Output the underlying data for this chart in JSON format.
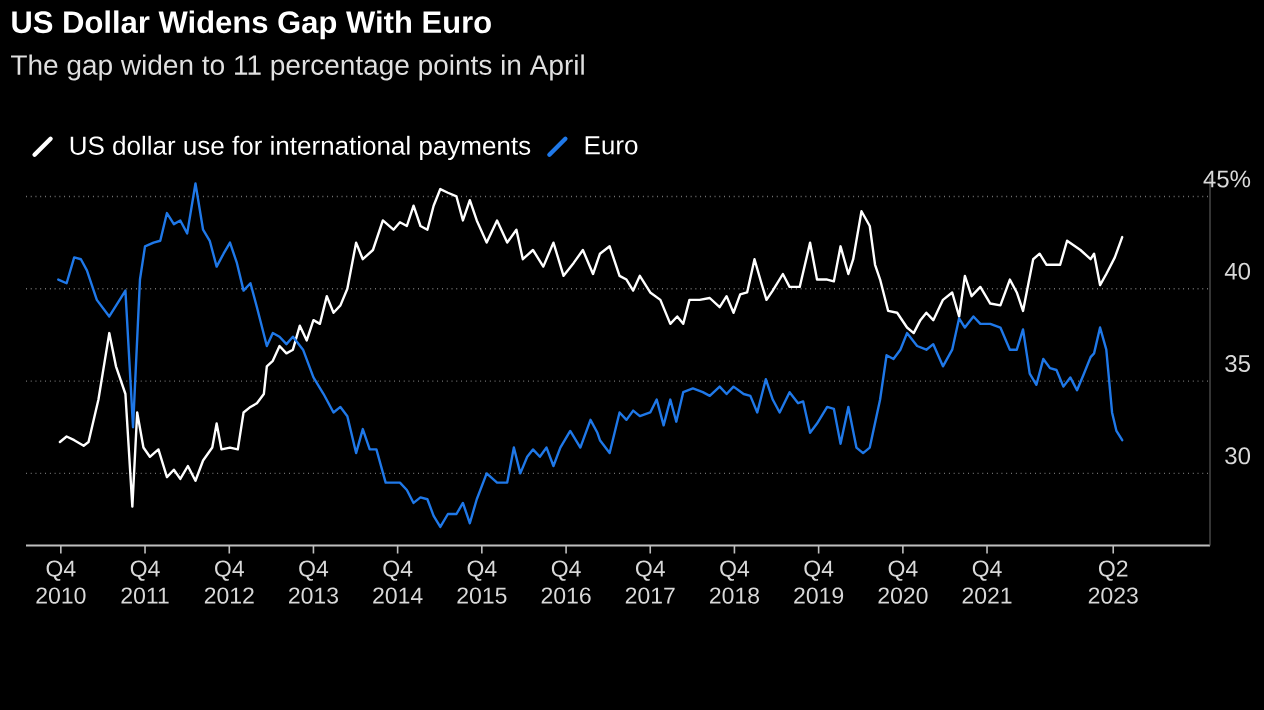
{
  "chart_data": {
    "type": "line",
    "title": "US Dollar Widens Gap With Euro",
    "subtitle": "The gap widen to 11 percentage points in April",
    "xlim": [
      "2010-05-03",
      "2024-05-25"
    ],
    "xticks": [
      {
        "value": "2010-10-01",
        "label": "Q4 2010"
      },
      {
        "value": "2011-10-01",
        "label": "Q4 2011"
      },
      {
        "value": "2012-10-01",
        "label": "Q4 2012"
      },
      {
        "value": "2013-10-01",
        "label": "Q4 2013"
      },
      {
        "value": "2014-10-01",
        "label": "Q4 2014"
      },
      {
        "value": "2015-10-01",
        "label": "Q4 2015"
      },
      {
        "value": "2016-10-01",
        "label": "Q4 2016"
      },
      {
        "value": "2017-10-01",
        "label": "Q4 2017"
      },
      {
        "value": "2018-10-01",
        "label": "Q4 2018"
      },
      {
        "value": "2019-10-01",
        "label": "Q4 2019"
      },
      {
        "value": "2020-10-01",
        "label": "Q4 2020"
      },
      {
        "value": "2021-10-01",
        "label": "Q4 2021"
      },
      {
        "value": "2023-04-01",
        "label": "Q2 2023"
      }
    ],
    "ylim": [
      26.1,
      46
    ],
    "yticks": [
      30,
      35,
      40,
      {
        "value": 45,
        "label": "45%"
      }
    ],
    "grid": "y",
    "legend": "top",
    "marker": "none",
    "line_style": "solid",
    "series": [
      {
        "name": "US dollar use for international payments",
        "color": "#ffffff",
        "x": [
          "2010-09-27",
          "2010-10-26",
          "2010-11-28",
          "2011-01-08",
          "2011-01-29",
          "2011-03-13",
          "2011-04-29",
          "2011-05-28",
          "2011-07-08",
          "2011-08-07",
          "2011-08-28",
          "2011-09-24",
          "2011-10-22",
          "2011-11-28",
          "2012-01-04",
          "2012-02-03",
          "2012-03-02",
          "2012-04-04",
          "2012-05-07",
          "2012-06-09",
          "2012-07-19",
          "2012-08-07",
          "2012-08-28",
          "2012-10-04",
          "2012-11-07",
          "2012-12-02",
          "2013-01-01",
          "2013-01-29",
          "2013-02-28",
          "2013-03-13",
          "2013-04-08",
          "2013-05-07",
          "2013-06-06",
          "2013-07-04",
          "2013-08-03",
          "2013-09-02",
          "2013-10-01",
          "2013-10-29",
          "2013-11-28",
          "2013-12-27",
          "2014-01-26",
          "2014-02-25",
          "2014-04-04",
          "2014-05-03",
          "2014-06-16",
          "2014-07-29",
          "2014-09-13",
          "2014-10-11",
          "2014-11-10",
          "2014-12-09",
          "2015-01-08",
          "2015-02-07",
          "2015-03-06",
          "2015-04-04",
          "2015-05-07",
          "2015-06-13",
          "2015-07-11",
          "2015-08-10",
          "2015-09-09",
          "2015-10-22",
          "2015-12-06",
          "2016-01-19",
          "2016-02-28",
          "2016-03-27",
          "2016-05-10",
          "2016-06-24",
          "2016-08-07",
          "2016-09-20",
          "2016-11-03",
          "2016-12-13",
          "2017-01-26",
          "2017-02-25",
          "2017-04-08",
          "2017-05-21",
          "2017-06-20",
          "2017-07-19",
          "2017-08-17",
          "2017-10-01",
          "2017-11-14",
          "2017-12-27",
          "2018-01-26",
          "2018-02-21",
          "2018-03-20",
          "2018-05-03",
          "2018-06-16",
          "2018-07-29",
          "2018-08-28",
          "2018-09-27",
          "2018-10-26",
          "2018-11-25",
          "2018-12-27",
          "2019-01-26",
          "2019-02-17",
          "2019-03-16",
          "2019-04-29",
          "2019-05-28",
          "2019-07-11",
          "2019-08-25",
          "2019-09-24",
          "2019-11-07",
          "2019-12-06",
          "2020-01-04",
          "2020-02-07",
          "2020-02-28",
          "2020-04-04",
          "2020-05-10",
          "2020-06-02",
          "2020-06-24",
          "2020-07-29",
          "2020-09-06",
          "2020-10-19",
          "2020-11-17",
          "2020-12-16",
          "2021-01-11",
          "2021-02-10",
          "2021-03-24",
          "2021-05-03",
          "2021-06-02",
          "2021-06-27",
          "2021-07-26",
          "2021-09-02",
          "2021-10-15",
          "2021-11-28",
          "2022-01-08",
          "2022-02-07",
          "2022-03-06",
          "2022-04-19",
          "2022-05-17",
          "2022-06-16",
          "2022-08-14",
          "2022-09-13",
          "2022-11-10",
          "2022-12-24",
          "2023-01-08",
          "2023-02-03",
          "2023-03-02",
          "2023-04-08",
          "2023-05-10"
        ],
        "values": [
          31.7,
          32.0,
          31.8,
          31.5,
          31.7,
          34.0,
          37.6,
          35.8,
          34.3,
          28.2,
          33.3,
          31.4,
          30.9,
          31.3,
          29.8,
          30.2,
          29.7,
          30.4,
          29.6,
          30.7,
          31.4,
          32.7,
          31.3,
          31.4,
          31.3,
          33.3,
          33.6,
          33.8,
          34.3,
          35.8,
          36.1,
          36.9,
          36.5,
          36.7,
          38.0,
          37.2,
          38.3,
          38.1,
          39.6,
          38.7,
          39.1,
          40.0,
          42.5,
          41.6,
          42.1,
          43.7,
          43.2,
          43.6,
          43.4,
          44.5,
          43.4,
          43.2,
          44.5,
          45.4,
          45.2,
          45.0,
          43.7,
          44.8,
          43.7,
          42.5,
          43.7,
          42.5,
          43.2,
          41.6,
          42.1,
          41.2,
          42.5,
          40.7,
          41.4,
          42.1,
          40.8,
          41.9,
          42.3,
          40.7,
          40.5,
          39.9,
          40.7,
          39.8,
          39.4,
          38.1,
          38.5,
          38.1,
          39.4,
          39.4,
          39.5,
          39.0,
          39.6,
          38.7,
          39.7,
          39.8,
          41.6,
          40.3,
          39.4,
          39.9,
          40.8,
          40.1,
          40.1,
          42.5,
          40.5,
          40.5,
          40.4,
          42.3,
          40.8,
          41.6,
          44.2,
          43.4,
          41.3,
          40.5,
          38.8,
          38.7,
          37.9,
          37.6,
          38.3,
          38.7,
          38.3,
          39.4,
          39.8,
          38.5,
          40.7,
          39.6,
          40.1,
          39.2,
          39.1,
          40.5,
          39.8,
          38.8,
          41.6,
          41.9,
          41.3,
          41.3,
          42.6,
          42.1,
          41.6,
          41.9,
          40.2,
          40.8,
          41.7,
          42.8
        ]
      },
      {
        "name": "Euro",
        "color": "#1f78e8",
        "x": [
          "2010-09-20",
          "2010-10-26",
          "2010-11-28",
          "2010-12-27",
          "2011-01-22",
          "2011-03-06",
          "2011-04-29",
          "2011-06-13",
          "2011-07-08",
          "2011-08-10",
          "2011-09-09",
          "2011-10-01",
          "2011-11-07",
          "2011-12-06",
          "2012-01-04",
          "2012-02-03",
          "2012-03-02",
          "2012-04-01",
          "2012-05-07",
          "2012-06-09",
          "2012-07-08",
          "2012-08-07",
          "2012-09-06",
          "2012-10-04",
          "2012-11-03",
          "2012-12-02",
          "2013-01-01",
          "2013-01-29",
          "2013-03-13",
          "2013-04-08",
          "2013-05-07",
          "2013-06-06",
          "2013-07-04",
          "2013-08-17",
          "2013-10-01",
          "2013-11-14",
          "2013-12-27",
          "2014-01-26",
          "2014-02-25",
          "2014-04-04",
          "2014-05-03",
          "2014-06-02",
          "2014-07-01",
          "2014-08-10",
          "2014-09-13",
          "2014-10-11",
          "2014-11-10",
          "2014-12-09",
          "2015-01-08",
          "2015-02-07",
          "2015-03-06",
          "2015-04-04",
          "2015-05-07",
          "2015-06-13",
          "2015-07-11",
          "2015-08-10",
          "2015-09-09",
          "2015-10-22",
          "2015-12-06",
          "2016-01-19",
          "2016-02-17",
          "2016-03-16",
          "2016-04-15",
          "2016-05-10",
          "2016-06-09",
          "2016-07-08",
          "2016-08-07",
          "2016-09-06",
          "2016-10-19",
          "2016-12-02",
          "2017-01-15",
          "2017-02-14",
          "2017-02-25",
          "2017-04-08",
          "2017-05-21",
          "2017-06-20",
          "2017-07-19",
          "2017-08-17",
          "2017-10-01",
          "2017-10-29",
          "2017-11-28",
          "2017-12-27",
          "2018-01-22",
          "2018-02-21",
          "2018-04-04",
          "2018-05-17",
          "2018-06-16",
          "2018-07-29",
          "2018-08-28",
          "2018-09-27",
          "2018-11-10",
          "2018-12-09",
          "2019-01-08",
          "2019-02-14",
          "2019-03-16",
          "2019-04-15",
          "2019-05-28",
          "2019-07-04",
          "2019-07-26",
          "2019-08-25",
          "2019-09-24",
          "2019-11-07",
          "2019-12-06",
          "2020-01-04",
          "2020-02-07",
          "2020-03-13",
          "2020-04-11",
          "2020-05-10",
          "2020-06-24",
          "2020-07-22",
          "2020-08-21",
          "2020-09-20",
          "2020-10-19",
          "2020-12-02",
          "2021-01-11",
          "2021-02-10",
          "2021-03-24",
          "2021-05-03",
          "2021-06-02",
          "2021-06-27",
          "2021-08-03",
          "2021-09-02",
          "2021-10-15",
          "2021-11-28",
          "2022-01-08",
          "2022-02-07",
          "2022-03-06",
          "2022-04-04",
          "2022-05-03",
          "2022-06-02",
          "2022-07-01",
          "2022-07-29",
          "2022-08-28",
          "2022-09-27",
          "2022-10-26",
          "2022-11-25",
          "2022-12-24",
          "2023-01-08",
          "2023-02-03",
          "2023-03-02",
          "2023-03-27",
          "2023-04-15",
          "2023-05-10"
        ],
        "values": [
          40.5,
          40.3,
          41.7,
          41.6,
          41.0,
          39.4,
          38.5,
          39.4,
          39.9,
          32.5,
          40.5,
          42.3,
          42.5,
          42.6,
          44.1,
          43.5,
          43.7,
          43.0,
          45.7,
          43.2,
          42.6,
          41.2,
          41.9,
          42.5,
          41.4,
          39.9,
          40.3,
          39.0,
          36.9,
          37.6,
          37.4,
          37.0,
          37.4,
          36.7,
          35.2,
          34.3,
          33.3,
          33.6,
          33.1,
          31.1,
          32.4,
          31.3,
          31.3,
          29.5,
          29.5,
          29.5,
          29.1,
          28.4,
          28.7,
          28.6,
          27.7,
          27.1,
          27.8,
          27.8,
          28.4,
          27.3,
          28.6,
          30.0,
          29.5,
          29.5,
          31.4,
          30.0,
          30.9,
          31.3,
          30.9,
          31.4,
          30.4,
          31.4,
          32.3,
          31.4,
          32.9,
          32.2,
          31.8,
          31.1,
          33.3,
          32.9,
          33.4,
          33.1,
          33.3,
          34.0,
          32.6,
          34.0,
          32.8,
          34.4,
          34.6,
          34.4,
          34.2,
          34.7,
          34.3,
          34.7,
          34.3,
          34.2,
          33.3,
          35.1,
          34.0,
          33.3,
          34.4,
          33.8,
          33.9,
          32.2,
          32.7,
          33.6,
          33.5,
          31.6,
          33.6,
          31.4,
          31.1,
          31.4,
          34.0,
          36.4,
          36.2,
          36.7,
          37.6,
          36.9,
          36.7,
          37.0,
          35.8,
          36.7,
          38.4,
          37.9,
          38.5,
          38.1,
          38.1,
          37.9,
          36.7,
          36.7,
          37.8,
          35.4,
          34.8,
          36.2,
          35.7,
          35.6,
          34.7,
          35.2,
          34.5,
          35.4,
          36.3,
          36.5,
          37.9,
          36.7,
          33.3,
          32.3,
          31.8
        ]
      }
    ]
  }
}
